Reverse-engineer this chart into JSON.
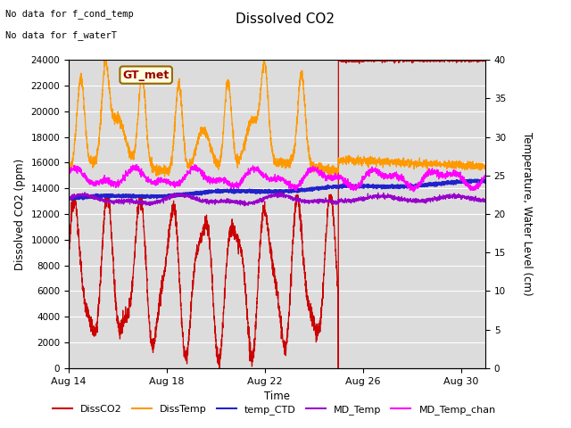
{
  "title": "Dissolved CO2",
  "no_data_text1": "No data for f_cond_temp",
  "no_data_text2": "No data for f_waterT",
  "xlabel": "Time",
  "ylabel_left": "Dissolved CO2 (ppm)",
  "ylabel_right": "Temperature, Water Level (cm)",
  "ylim_left": [
    0,
    24000
  ],
  "ylim_right": [
    0,
    40
  ],
  "yticks_left": [
    0,
    2000,
    4000,
    6000,
    8000,
    10000,
    12000,
    14000,
    16000,
    18000,
    20000,
    22000,
    24000
  ],
  "yticks_right": [
    0,
    5,
    10,
    15,
    20,
    25,
    30,
    35,
    40
  ],
  "xtick_positions": [
    0,
    4,
    8,
    12,
    16
  ],
  "xtick_labels": [
    "Aug 14",
    "Aug 18",
    "Aug 22",
    "Aug 26",
    "Aug 30"
  ],
  "gt_met_label": "GT_met",
  "legend_entries": [
    "DissCO2",
    "DissTemp",
    "temp_CTD",
    "MD_Temp",
    "MD_Temp_chan"
  ],
  "legend_colors": [
    "#cc0000",
    "#ff9900",
    "#2222cc",
    "#9900cc",
    "#ff00ff"
  ]
}
